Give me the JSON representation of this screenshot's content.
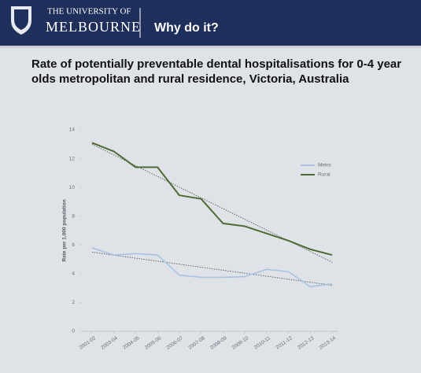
{
  "header": {
    "university_line1": "THE UNIVERSITY OF",
    "university_line2": "MELBOURNE",
    "section": "Why do it?"
  },
  "chart_data": {
    "type": "line",
    "title": [
      "Rate of potentially preventable dental hospitalisations for 0-4 year",
      "olds metropolitan and rural residence, Victoria, Australia"
    ],
    "y_label": "Rate per 1,000 population",
    "categories": [
      "2001-02",
      "2003-04",
      "2004-05",
      "2005-06",
      "2006-07",
      "2007-08",
      "2008-09",
      "2009-10",
      "2010-11",
      "2011-12",
      "2012-13",
      "2013-14"
    ],
    "series": [
      {
        "name": "Metro",
        "color": "#a8c3e0",
        "values": [
          5.8,
          5.3,
          5.4,
          5.3,
          3.9,
          3.75,
          3.75,
          3.8,
          4.3,
          4.15,
          3.1,
          3.3
        ],
        "trend": [
          5.5,
          3.2
        ]
      },
      {
        "name": "Rural",
        "color": "#4d6b33",
        "values": [
          13.1,
          12.5,
          11.4,
          11.4,
          9.45,
          9.2,
          7.5,
          7.3,
          6.8,
          6.3,
          5.7,
          5.3
        ],
        "trend": [
          13.0,
          4.8
        ]
      }
    ],
    "ylim": [
      0,
      14
    ],
    "yticks": [
      0,
      2,
      4,
      6,
      8,
      10,
      12,
      14
    ],
    "grid": false,
    "legend": "top-right"
  }
}
